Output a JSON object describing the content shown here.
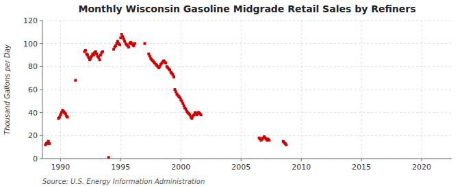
{
  "chart_data": {
    "type": "scatter",
    "title": "Monthly Wisconsin Gasoline Midgrade Retail Sales by Refiners",
    "ylabel": "Thousand Gallons per Day",
    "annotation": "Source: U.S. Energy Information Administration",
    "color": "#cc0000",
    "marker": "square",
    "grid": true,
    "xlim": [
      1988.5,
      2022.5
    ],
    "ylim": [
      0,
      120
    ],
    "xticks": [
      1990,
      1995,
      2000,
      2005,
      2010,
      2015,
      2020
    ],
    "yticks": [
      0,
      20,
      40,
      60,
      80,
      100,
      120
    ],
    "x": [
      1988.75,
      1988.83,
      1988.92,
      1989.0,
      1989.08,
      1989.83,
      1989.92,
      1990.0,
      1990.08,
      1990.17,
      1990.25,
      1990.33,
      1990.42,
      1990.5,
      1990.58,
      1991.25,
      1992.0,
      1992.08,
      1992.17,
      1992.25,
      1992.33,
      1992.42,
      1992.5,
      1992.58,
      1992.67,
      1992.75,
      1992.83,
      1992.92,
      1993.0,
      1993.08,
      1993.17,
      1993.25,
      1993.33,
      1993.42,
      1993.5,
      1994.0,
      1994.42,
      1994.5,
      1994.58,
      1994.67,
      1994.75,
      1994.83,
      1994.92,
      1995.0,
      1995.08,
      1995.17,
      1995.25,
      1995.33,
      1995.42,
      1995.5,
      1995.58,
      1995.67,
      1995.75,
      1995.83,
      1995.92,
      1996.0,
      1996.08,
      1996.17,
      1997.0,
      1997.33,
      1997.42,
      1997.5,
      1997.58,
      1997.67,
      1997.75,
      1997.83,
      1997.92,
      1998.0,
      1998.08,
      1998.17,
      1998.25,
      1998.33,
      1998.42,
      1998.5,
      1998.58,
      1998.67,
      1998.75,
      1998.83,
      1998.92,
      1999.0,
      1999.08,
      1999.17,
      1999.25,
      1999.33,
      1999.42,
      1999.5,
      1999.58,
      1999.67,
      1999.75,
      1999.83,
      1999.92,
      2000.0,
      2000.08,
      2000.17,
      2000.25,
      2000.33,
      2000.42,
      2000.5,
      2000.58,
      2000.67,
      2000.75,
      2000.83,
      2000.92,
      2001.0,
      2001.08,
      2001.17,
      2001.25,
      2001.33,
      2001.42,
      2001.5,
      2001.58,
      2001.67,
      2006.5,
      2006.58,
      2006.67,
      2006.75,
      2006.83,
      2006.92,
      2007.0,
      2007.08,
      2007.17,
      2007.25,
      2007.33,
      2008.5,
      2008.58,
      2008.67,
      2008.75
    ],
    "values": [
      12,
      13,
      14,
      15,
      13,
      35,
      36,
      38,
      40,
      42,
      41,
      40,
      39,
      37,
      36,
      68,
      93,
      94,
      91,
      90,
      88,
      86,
      87,
      89,
      91,
      90,
      92,
      93,
      91,
      89,
      88,
      86,
      90,
      92,
      93,
      1,
      95,
      97,
      98,
      100,
      102,
      100,
      99,
      105,
      108,
      106,
      104,
      102,
      100,
      99,
      98,
      97,
      100,
      101,
      100,
      99,
      98,
      100,
      100,
      91,
      89,
      87,
      86,
      85,
      84,
      83,
      82,
      81,
      80,
      79,
      80,
      82,
      83,
      84,
      85,
      84,
      83,
      80,
      79,
      78,
      77,
      75,
      74,
      73,
      71,
      60,
      58,
      56,
      55,
      54,
      53,
      51,
      50,
      48,
      46,
      44,
      43,
      41,
      40,
      39,
      38,
      36,
      35,
      37,
      38,
      40,
      39,
      38,
      40,
      40,
      39,
      38,
      18,
      17,
      16,
      17,
      18,
      19,
      18,
      17,
      16,
      17,
      16,
      15,
      14,
      13,
      12
    ]
  }
}
